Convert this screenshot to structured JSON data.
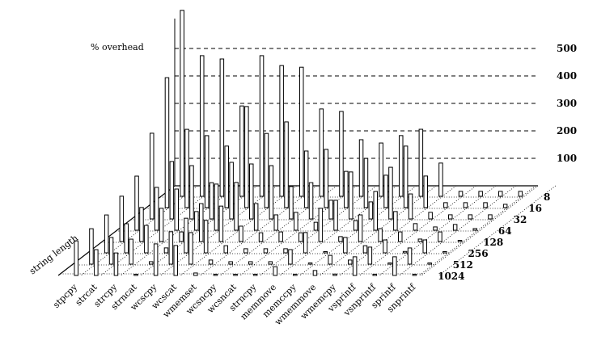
{
  "chart_data": {
    "type": "bar3d",
    "zlabel": "% overhead",
    "ylabel": "string length",
    "zlim": [
      0,
      600
    ],
    "z_ticks": [
      "100",
      "200",
      "300",
      "400",
      "500"
    ],
    "grid": true,
    "categories": [
      "stpcpy",
      "strcat",
      "strcpy",
      "strncat",
      "wcscpy",
      "wcscat",
      "wmemset",
      "wcsncpy",
      "wcsncat",
      "strncpy",
      "memmove",
      "memccpy",
      "wmemmove",
      "wmemcpy",
      "vsprintf",
      "vsnprintf",
      "sprintf",
      "snprintf"
    ],
    "string_lengths": [
      "8",
      "16",
      "32",
      "64",
      "128",
      "256",
      "512",
      "1024"
    ],
    "series": [
      {
        "name": "8",
        "values": [
          677,
          512,
          500,
          329,
          512,
          476,
          470,
          318,
          309,
          206,
          194,
          221,
          244,
          121,
          18,
          18,
          18,
          18
        ]
      },
      {
        "name": "16",
        "values": [
          473,
          285,
          262,
          224,
          368,
          270,
          312,
          206,
          212,
          132,
          179,
          118,
          224,
          115,
          18,
          18,
          18,
          12
        ]
      },
      {
        "name": "32",
        "values": [
          312,
          209,
          194,
          132,
          206,
          200,
          194,
          118,
          132,
          68,
          171,
          62,
          188,
          91,
          24,
          15,
          15,
          15
        ]
      },
      {
        "name": "64",
        "values": [
          197,
          156,
          150,
          68,
          168,
          174,
          97,
          56,
          65,
          29,
          109,
          35,
          141,
          68,
          24,
          12,
          21,
          6
        ]
      },
      {
        "name": "128",
        "values": [
          165,
          124,
          121,
          35,
          138,
          129,
          56,
          32,
          35,
          32,
          121,
          18,
          97,
          47,
          35,
          9,
          35,
          3
        ]
      },
      {
        "name": "256",
        "values": [
          138,
          106,
          100,
          18,
          126,
          118,
          26,
          15,
          15,
          15,
          74,
          3,
          56,
          26,
          47,
          5,
          47,
          3
        ]
      },
      {
        "name": "512",
        "values": [
          129,
          97,
          91,
          9,
          118,
          115,
          15,
          9,
          9,
          9,
          53,
          2,
          32,
          15,
          62,
          2,
          59,
          2
        ]
      },
      {
        "name": "1024",
        "values": [
          126,
          94,
          82,
          3,
          115,
          109,
          9,
          2,
          2,
          2,
          32,
          2,
          18,
          5,
          68,
          2,
          68,
          2
        ]
      }
    ]
  }
}
